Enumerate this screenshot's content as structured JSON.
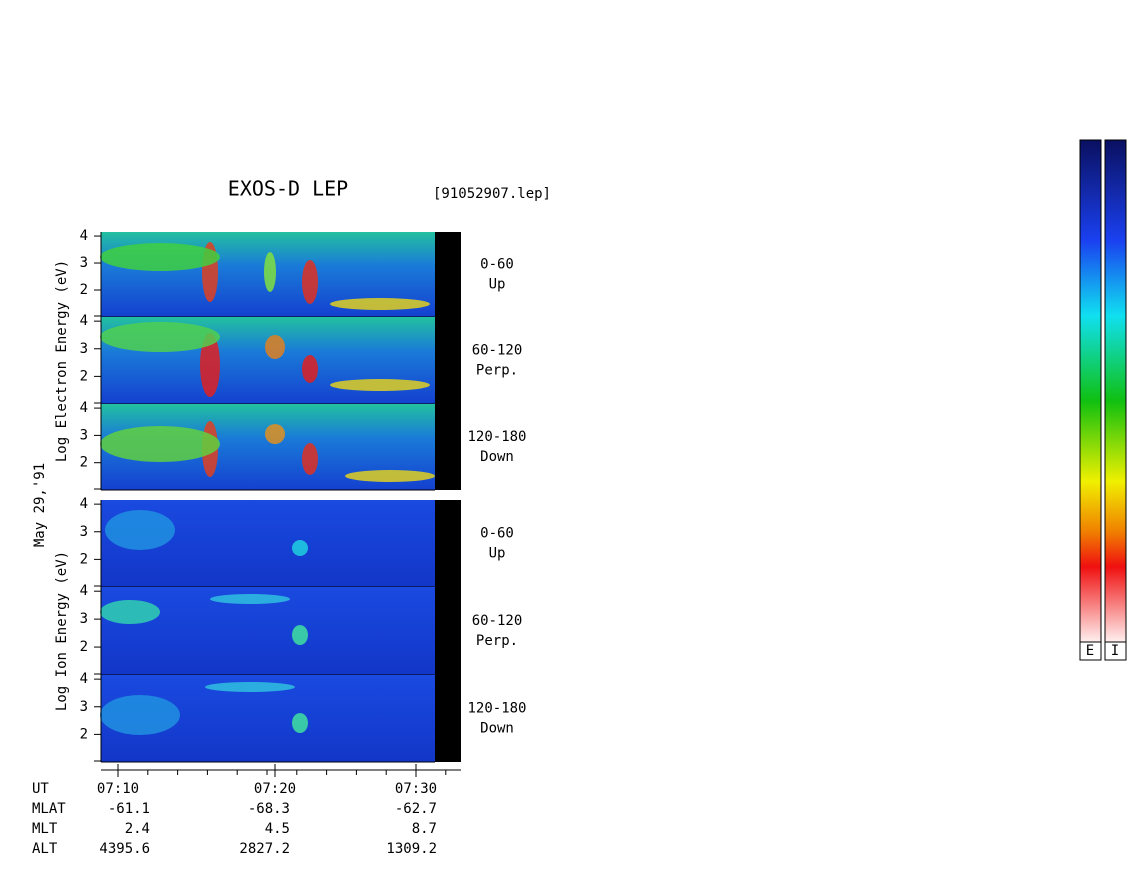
{
  "header": {
    "title": "EXOS-D LEP",
    "file": "[91052907.lep]"
  },
  "date": "May 29,'91",
  "chart_data": {
    "type": "spectrogram",
    "groups": [
      {
        "ylabel": "Log Electron Energy (eV)",
        "panels": [
          {
            "angle": "0-60",
            "direction": "Up"
          },
          {
            "angle": "60-120",
            "direction": "Perp."
          },
          {
            "angle": "120-180",
            "direction": "Down"
          }
        ]
      },
      {
        "ylabel": "Log Ion Energy (eV)",
        "panels": [
          {
            "angle": "0-60",
            "direction": "Up"
          },
          {
            "angle": "60-120",
            "direction": "Perp."
          },
          {
            "angle": "120-180",
            "direction": "Down"
          }
        ]
      }
    ],
    "ylim": [
      1,
      4.15
    ],
    "yticks": [
      2,
      3,
      4
    ],
    "xticks": [
      "07:10",
      "07:20",
      "07:30"
    ]
  },
  "orbit": {
    "labels": [
      "UT",
      "MLAT",
      "MLT",
      "ALT"
    ],
    "columns": [
      [
        -61.1,
        2.4,
        4395.6
      ],
      [
        -68.3,
        4.5,
        2827.2
      ],
      [
        -62.7,
        8.7,
        1309.2
      ]
    ]
  },
  "colorbar": [
    "E",
    "I"
  ]
}
